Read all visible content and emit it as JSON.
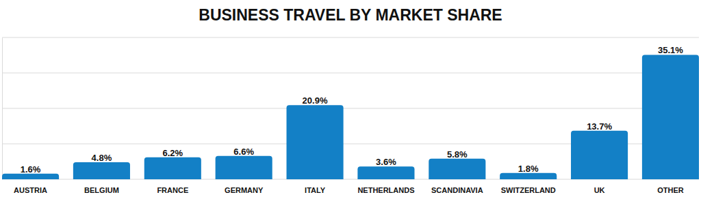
{
  "chart_data": {
    "type": "bar",
    "title": "BUSINESS TRAVEL BY MARKET SHARE",
    "categories": [
      "AUSTRIA",
      "BELGIUM",
      "FRANCE",
      "GERMANY",
      "ITALY",
      "NETHERLANDS",
      "SCANDINAVIA",
      "SWITZERLAND",
      "UK",
      "OTHER"
    ],
    "values": [
      1.6,
      4.8,
      6.2,
      6.6,
      20.9,
      3.6,
      5.8,
      1.8,
      13.7,
      35.1
    ],
    "value_labels": [
      "1.6%",
      "4.8%",
      "6.2%",
      "6.6%",
      "20.9%",
      "3.6%",
      "5.8%",
      "1.8%",
      "13.7%",
      "35.1%"
    ],
    "data_labels": true,
    "color": "#1380c6",
    "ylim": [
      0,
      40
    ],
    "yticks": [
      0,
      10,
      20,
      30,
      40
    ],
    "grid": true,
    "tick_labels": "x"
  }
}
